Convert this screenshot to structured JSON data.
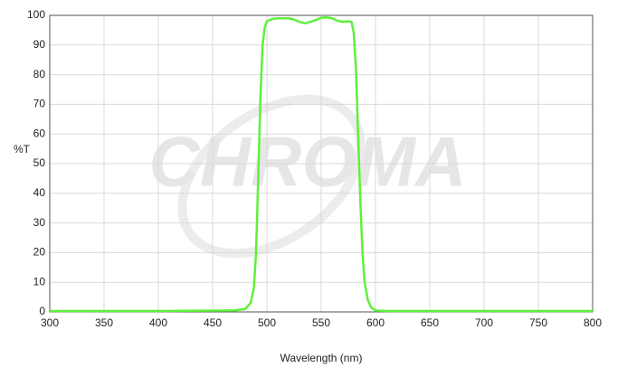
{
  "chart_data": {
    "type": "line",
    "x_label": "Wavelength (nm)",
    "y_label": "%T",
    "watermark": "CHROMA",
    "xlim": [
      300,
      800
    ],
    "xticks": [
      300,
      350,
      400,
      450,
      500,
      550,
      600,
      650,
      700,
      750,
      800
    ],
    "ylim": [
      0,
      100
    ],
    "yticks": [
      0,
      10,
      20,
      30,
      40,
      50,
      60,
      70,
      80,
      90,
      100
    ],
    "grid": true,
    "x": [
      300,
      400,
      470,
      480,
      485,
      488,
      490,
      492,
      494,
      496,
      498,
      500,
      505,
      510,
      520,
      525,
      530,
      535,
      540,
      545,
      550,
      555,
      560,
      565,
      570,
      575,
      578,
      580,
      582,
      584,
      586,
      588,
      590,
      593,
      596,
      600,
      610,
      650,
      700,
      800
    ],
    "series": [
      {
        "color": "#5ff03c",
        "values": [
          0.3,
          0.3,
          0.5,
          1,
          3,
          8,
          20,
          45,
          72,
          90,
          96,
          98,
          98.8,
          99,
          99,
          98.6,
          97.8,
          97.3,
          97.8,
          98.4,
          99.2,
          99.3,
          99,
          98.2,
          97.8,
          98,
          97.8,
          94,
          82,
          60,
          38,
          20,
          10,
          4,
          1.5,
          0.5,
          0.3,
          0.3,
          0.3,
          0.3
        ]
      }
    ]
  }
}
